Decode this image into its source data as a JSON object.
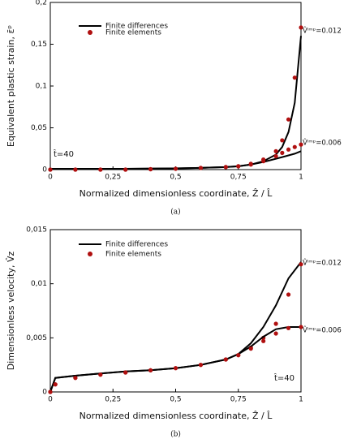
{
  "chart_data": [
    {
      "type": "line",
      "x": [
        0,
        0.1,
        0.2,
        0.3,
        0.4,
        0.5,
        0.6,
        0.7,
        0.75,
        0.8,
        0.85,
        0.9,
        0.925,
        0.95,
        0.975,
        1
      ],
      "series": [
        {
          "name": "Finite differences",
          "color": "#000000",
          "style": "line",
          "values": [
            0.001,
            0.001,
            0.001,
            0.001,
            0.0012,
            0.0015,
            0.002,
            0.003,
            0.004,
            0.006,
            0.01,
            0.018,
            0.027,
            0.045,
            0.08,
            0.16
          ]
        },
        {
          "name": "Finite elements",
          "color": "#b01010",
          "style": "markers",
          "values": [
            0,
            0,
            0,
            0,
            0.0005,
            0.001,
            0.002,
            0.003,
            0.004,
            0.007,
            0.012,
            0.022,
            0.035,
            0.06,
            0.11,
            0.17
          ]
        },
        {
          "color": "#000000",
          "style": "line",
          "values": [
            0.001,
            0.001,
            0.001,
            0.001,
            0.0012,
            0.0015,
            0.002,
            0.003,
            0.004,
            0.006,
            0.009,
            0.013,
            0.015,
            0.017,
            0.019,
            0.022
          ]
        },
        {
          "color": "#b01010",
          "style": "markers",
          "values": [
            0,
            0,
            0,
            0,
            0.0005,
            0.001,
            0.002,
            0.003,
            0.004,
            0.006,
            0.01,
            0.016,
            0.02,
            0.024,
            0.027,
            0.03
          ]
        }
      ],
      "xlim": [
        0,
        1
      ],
      "ylim": [
        0,
        0.2
      ],
      "xticks": [
        0,
        {
          "value": 0.25,
          "label": "0,25"
        },
        {
          "value": 0.5,
          "label": "0,5"
        },
        {
          "value": 0.75,
          "label": "0,75"
        },
        1
      ],
      "yticks": [
        0,
        {
          "value": 0.05,
          "label": "0,05"
        },
        {
          "value": 0.1,
          "label": "0,1"
        },
        {
          "value": 0.15,
          "label": "0,15"
        },
        {
          "value": 0.2,
          "label": "0,2"
        }
      ],
      "x_label": "Normalized dimensionless coordinate, Ẑ / L̂",
      "y_label": "Equivalent plastic strain, ε̄ᵖ",
      "annotations": [
        "t̂=40",
        "V̂ⁱᵐᵖ=0.012",
        "V̂ⁱᵐᵖ=0.006"
      ],
      "caption": "(a)",
      "legend": "upper left"
    },
    {
      "type": "line",
      "x": [
        0,
        0.02,
        0.1,
        0.2,
        0.3,
        0.4,
        0.5,
        0.6,
        0.7,
        0.75,
        0.8,
        0.85,
        0.9,
        0.95,
        1
      ],
      "series": [
        {
          "name": "Finite differences",
          "color": "#000000",
          "style": "line",
          "values": [
            0,
            0.0013,
            0.0015,
            0.0017,
            0.0019,
            0.002,
            0.0022,
            0.0025,
            0.003,
            0.0035,
            0.0045,
            0.006,
            0.008,
            0.0105,
            0.012
          ]
        },
        {
          "name": "Finite elements",
          "color": "#b01010",
          "style": "markers",
          "values": [
            0,
            0.0007,
            0.0013,
            0.0016,
            0.0018,
            0.002,
            0.0022,
            0.0025,
            0.003,
            0.0034,
            0.0041,
            0.005,
            0.0063,
            0.009,
            0.0118
          ]
        },
        {
          "color": "#000000",
          "style": "line",
          "values": [
            0,
            0.0013,
            0.0015,
            0.0017,
            0.0019,
            0.002,
            0.0022,
            0.0025,
            0.003,
            0.0035,
            0.0042,
            0.0051,
            0.0058,
            0.006,
            0.006
          ]
        },
        {
          "color": "#b01010",
          "style": "markers",
          "values": [
            0,
            0.0007,
            0.0013,
            0.0016,
            0.0018,
            0.002,
            0.0022,
            0.0025,
            0.003,
            0.0034,
            0.004,
            0.0047,
            0.0054,
            0.0059,
            0.006
          ]
        }
      ],
      "xlim": [
        0,
        1
      ],
      "ylim": [
        0,
        0.015
      ],
      "xticks": [
        0,
        {
          "value": 0.25,
          "label": "0,25"
        },
        {
          "value": 0.5,
          "label": "0,5"
        },
        {
          "value": 0.75,
          "label": "0,75"
        },
        1
      ],
      "yticks": [
        0,
        {
          "value": 0.005,
          "label": "0,005"
        },
        {
          "value": 0.01,
          "label": "0,01"
        },
        {
          "value": 0.015,
          "label": "0,015"
        }
      ],
      "x_label": "Normalized dimensionless coordinate, Ẑ / L̂",
      "y_label": "Dimensionless velocity, V̂z",
      "annotations": [
        "V̂ⁱᵐᵖ=0.012",
        "V̂ⁱᵐᵖ=0.006",
        "t̂=40"
      ],
      "caption": "(b)",
      "legend": "upper left"
    }
  ]
}
